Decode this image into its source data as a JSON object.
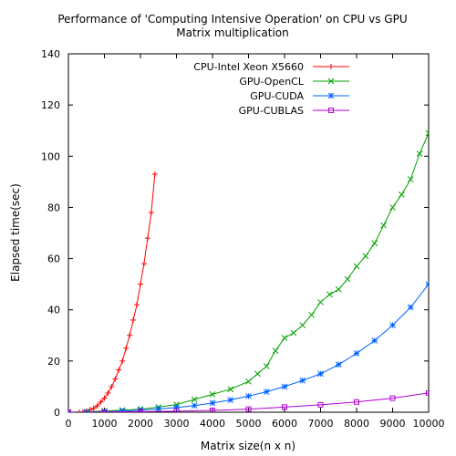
{
  "chart_data": {
    "type": "line",
    "title": "Performance of 'Computing Intensive Operation' on CPU vs GPU",
    "subtitle": "Matrix multiplication",
    "xlabel": "Matrix size(n x n)",
    "ylabel": "Elapsed time(sec)",
    "xlim": [
      0,
      10000
    ],
    "ylim": [
      0,
      140
    ],
    "xticks": [
      "0",
      "1000",
      "2000",
      "3000",
      "4000",
      "5000",
      "6000",
      "7000",
      "8000",
      "9000",
      "10000"
    ],
    "yticks": [
      "0",
      "20",
      "40",
      "60",
      "80",
      "100",
      "120",
      "140"
    ],
    "legend_position": "top-right",
    "grid": false,
    "series": [
      {
        "name": "CPU-Intel Xeon X5660",
        "color": "#ff0000",
        "marker": "plus",
        "x": [
          300,
          400,
          500,
          600,
          700,
          800,
          900,
          1000,
          1100,
          1200,
          1300,
          1400,
          1500,
          1600,
          1700,
          1800,
          1900,
          2000,
          2100,
          2200,
          2300,
          2400
        ],
        "y": [
          0,
          0,
          0.5,
          1,
          1.5,
          2.5,
          4,
          5.5,
          7.5,
          10,
          13,
          16.5,
          20,
          25,
          30,
          36,
          42,
          50,
          58,
          68,
          78,
          93
        ]
      },
      {
        "name": "GPU-OpenCL",
        "color": "#00a000",
        "marker": "x",
        "x": [
          0,
          500,
          1000,
          1500,
          2000,
          2500,
          3000,
          3500,
          4000,
          4500,
          5000,
          5250,
          5500,
          5750,
          6000,
          6250,
          6500,
          6750,
          7000,
          7250,
          7500,
          7750,
          8000,
          8250,
          8500,
          8750,
          9000,
          9250,
          9500,
          9750,
          10000
        ],
        "y": [
          0,
          0.2,
          0.5,
          0.8,
          1.2,
          2,
          3,
          5,
          7,
          9,
          12,
          15,
          18,
          24,
          29,
          31,
          34,
          38,
          43,
          46,
          48,
          52,
          57,
          61,
          66,
          73,
          80,
          85,
          91,
          101,
          109
        ]
      },
      {
        "name": "GPU-CUDA",
        "color": "#0060ff",
        "marker": "star",
        "x": [
          0,
          500,
          1000,
          1500,
          2000,
          2500,
          3000,
          3500,
          4000,
          4500,
          5000,
          5500,
          6000,
          6500,
          7000,
          7500,
          8000,
          8500,
          9000,
          9500,
          10000
        ],
        "y": [
          0,
          0,
          0.2,
          0.4,
          0.8,
          1.3,
          1.8,
          2.6,
          3.6,
          4.8,
          6.3,
          8,
          10,
          12.4,
          15,
          18.6,
          23,
          28,
          34,
          41,
          50
        ]
      },
      {
        "name": "GPU-CUBLAS",
        "color": "#b000d0",
        "marker": "square",
        "x": [
          0,
          1000,
          2000,
          3000,
          4000,
          5000,
          6000,
          7000,
          8000,
          9000,
          10000
        ],
        "y": [
          0,
          0.1,
          0.2,
          0.4,
          0.7,
          1.2,
          2,
          2.9,
          4,
          5.5,
          7.5
        ]
      }
    ]
  }
}
